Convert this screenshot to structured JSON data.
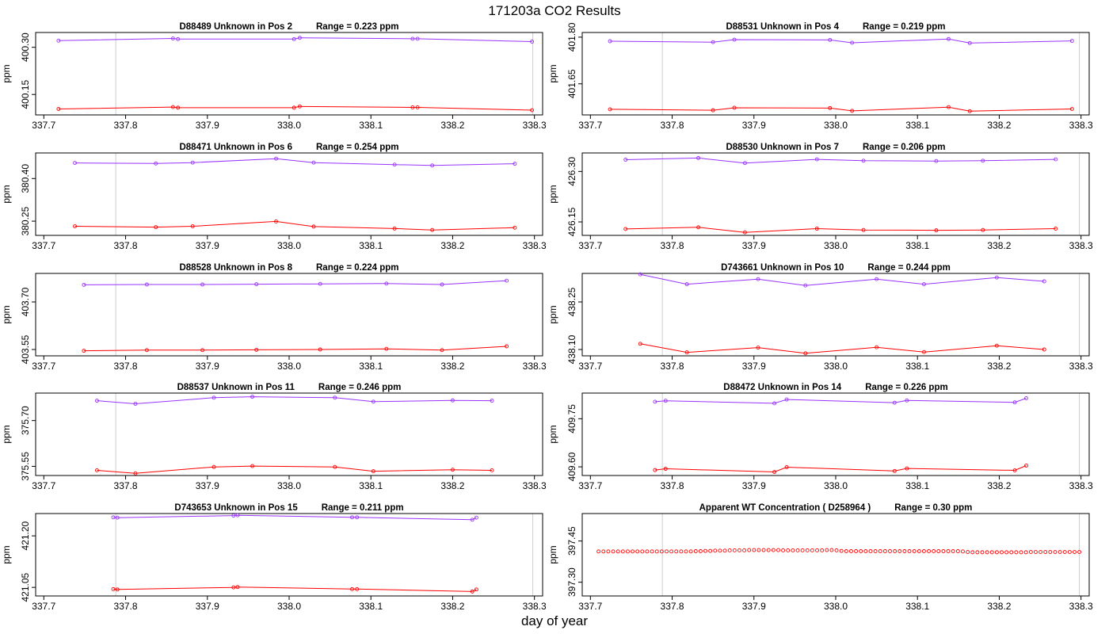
{
  "page": {
    "title": "171203a  CO2 Results",
    "xlabel": "day of year"
  },
  "colors": {
    "upper": "#9933ff",
    "lower": "#ff0000",
    "ref_line": "#cccccc",
    "axis": "#000000"
  },
  "chart_data": [
    {
      "type": "line",
      "id": "D88489",
      "title": "D88489    Unknown in Pos 2",
      "range_text": "Range =  0.223 ppm",
      "ylabel": "ppm",
      "xlim": [
        337.69,
        338.31
      ],
      "xticks": [
        "337.7",
        "337.8",
        "337.9",
        "338.0",
        "338.1",
        "338.2",
        "338.3"
      ],
      "ylim": [
        400.085,
        400.347
      ],
      "yticks": [
        "400.15",
        "400.30"
      ],
      "ref_lines": [
        337.788,
        338.298
      ],
      "series": [
        {
          "name": "upper",
          "x": [
            337.718,
            337.858,
            337.864,
            338.006,
            338.013,
            338.151,
            338.157,
            338.297
          ],
          "y": [
            400.321,
            400.328,
            400.326,
            400.326,
            400.33,
            400.327,
            400.327,
            400.318
          ]
        },
        {
          "name": "lower",
          "x": [
            337.718,
            337.858,
            337.864,
            338.006,
            338.013,
            338.151,
            338.157,
            338.297
          ],
          "y": [
            400.104,
            400.11,
            400.108,
            400.108,
            400.112,
            400.109,
            400.109,
            400.1
          ]
        }
      ]
    },
    {
      "type": "line",
      "id": "D88531",
      "title": "D88531    Unknown in Pos 4",
      "range_text": "Range =  0.219 ppm",
      "ylabel": "ppm",
      "xlim": [
        337.69,
        338.31
      ],
      "xticks": [
        "337.7",
        "337.8",
        "337.9",
        "338.0",
        "338.1",
        "338.2",
        "338.3"
      ],
      "ylim": [
        401.55,
        401.815
      ],
      "yticks": [
        "401.65",
        "401.80"
      ],
      "ref_lines": [
        337.788,
        338.298
      ],
      "series": [
        {
          "name": "upper",
          "x": [
            337.724,
            337.85,
            337.876,
            337.993,
            338.02,
            338.138,
            338.164,
            338.289
          ],
          "y": [
            401.787,
            401.784,
            401.792,
            401.791,
            401.782,
            401.794,
            401.781,
            401.788
          ]
        },
        {
          "name": "lower",
          "x": [
            337.724,
            337.85,
            337.876,
            337.993,
            338.02,
            338.138,
            338.164,
            338.289
          ],
          "y": [
            401.568,
            401.565,
            401.573,
            401.572,
            401.563,
            401.575,
            401.562,
            401.569
          ]
        }
      ]
    },
    {
      "type": "line",
      "id": "D88471",
      "title": "D88471    Unknown in Pos 6",
      "range_text": "Range =  0.254 ppm",
      "ylabel": "ppm",
      "xlim": [
        337.69,
        338.31
      ],
      "xticks": [
        "337.7",
        "337.8",
        "337.9",
        "338.0",
        "338.1",
        "338.2",
        "338.3"
      ],
      "ylim": [
        380.2,
        380.49
      ],
      "yticks": [
        "380.25",
        "380.40"
      ],
      "ref_lines": [
        337.788
      ],
      "series": [
        {
          "name": "upper",
          "x": [
            337.738,
            337.837,
            337.882,
            337.984,
            338.03,
            338.129,
            338.175,
            338.276
          ],
          "y": [
            380.455,
            380.453,
            380.456,
            380.47,
            380.456,
            380.449,
            380.446,
            380.452
          ]
        },
        {
          "name": "lower",
          "x": [
            337.738,
            337.837,
            337.882,
            337.984,
            338.03,
            338.129,
            338.175,
            338.276
          ],
          "y": [
            380.232,
            380.229,
            380.232,
            380.249,
            380.231,
            380.224,
            380.219,
            380.227
          ]
        }
      ]
    },
    {
      "type": "line",
      "id": "D88530",
      "title": "D88530    Unknown in Pos 7",
      "range_text": "Range =  0.206 ppm",
      "ylabel": "ppm",
      "xlim": [
        337.69,
        338.31
      ],
      "xticks": [
        "337.7",
        "337.8",
        "337.9",
        "338.0",
        "338.1",
        "338.2",
        "338.3"
      ],
      "ylim": [
        426.11,
        426.355
      ],
      "yticks": [
        "426.15",
        "426.30"
      ],
      "ref_lines": [
        337.788,
        338.298
      ],
      "series": [
        {
          "name": "upper",
          "x": [
            337.743,
            337.832,
            337.889,
            337.977,
            338.034,
            338.123,
            338.18,
            338.269
          ],
          "y": [
            426.335,
            426.34,
            426.325,
            426.336,
            426.332,
            426.331,
            426.332,
            426.336
          ]
        },
        {
          "name": "lower",
          "x": [
            337.743,
            337.832,
            337.889,
            337.977,
            338.034,
            338.123,
            338.18,
            338.269
          ],
          "y": [
            426.129,
            426.134,
            426.119,
            426.13,
            426.126,
            426.125,
            426.126,
            426.13
          ]
        }
      ]
    },
    {
      "type": "line",
      "id": "D88528",
      "title": "D88528    Unknown in Pos 8",
      "range_text": "Range =  0.224 ppm",
      "ylabel": "ppm",
      "xlim": [
        337.69,
        338.31
      ],
      "xticks": [
        "337.7",
        "337.8",
        "337.9",
        "338.0",
        "338.1",
        "338.2",
        "338.3"
      ],
      "ylim": [
        403.53,
        403.79
      ],
      "yticks": [
        "403.55",
        "403.70"
      ],
      "ref_lines": [
        337.788
      ],
      "series": [
        {
          "name": "upper",
          "x": [
            337.749,
            337.826,
            337.894,
            337.96,
            338.038,
            338.119,
            338.187,
            338.266
          ],
          "y": [
            403.754,
            403.755,
            403.755,
            403.756,
            403.757,
            403.758,
            403.755,
            403.767
          ]
        },
        {
          "name": "lower",
          "x": [
            337.749,
            337.826,
            337.894,
            337.96,
            338.038,
            338.119,
            338.187,
            338.266
          ],
          "y": [
            403.546,
            403.548,
            403.548,
            403.549,
            403.55,
            403.552,
            403.548,
            403.56
          ]
        }
      ]
    },
    {
      "type": "line",
      "id": "D743661",
      "title": "D743661    Unknown in Pos 10",
      "range_text": "Range =  0.244 ppm",
      "ylabel": "ppm",
      "xlim": [
        337.69,
        338.31
      ],
      "xticks": [
        "337.7",
        "337.8",
        "337.9",
        "338.0",
        "338.1",
        "338.2",
        "338.3"
      ],
      "ylim": [
        438.08,
        438.34
      ],
      "yticks": [
        "438.10",
        "438.25"
      ],
      "ref_lines": [
        337.788,
        338.298
      ],
      "series": [
        {
          "name": "upper",
          "x": [
            337.761,
            337.818,
            337.905,
            337.963,
            338.05,
            338.108,
            338.197,
            338.255
          ],
          "y": [
            438.337,
            438.306,
            438.322,
            438.302,
            438.322,
            438.306,
            438.327,
            438.315
          ]
        },
        {
          "name": "lower",
          "x": [
            337.761,
            337.818,
            337.905,
            337.963,
            338.05,
            338.108,
            338.197,
            338.255
          ],
          "y": [
            438.118,
            438.091,
            438.106,
            438.088,
            438.107,
            438.092,
            438.112,
            438.1
          ]
        }
      ]
    },
    {
      "type": "line",
      "id": "D88537",
      "title": "D88537    Unknown in Pos 11",
      "range_text": "Range =  0.246 ppm",
      "ylabel": "ppm",
      "xlim": [
        337.69,
        338.31
      ],
      "xticks": [
        "337.7",
        "337.8",
        "337.9",
        "338.0",
        "338.1",
        "338.2",
        "338.3"
      ],
      "ylim": [
        375.52,
        375.79
      ],
      "yticks": [
        "375.55",
        "375.70"
      ],
      "ref_lines": [
        337.788
      ],
      "series": [
        {
          "name": "upper",
          "x": [
            337.765,
            337.812,
            337.908,
            337.955,
            338.056,
            338.103,
            338.2,
            338.248
          ],
          "y": [
            375.765,
            375.755,
            375.775,
            375.778,
            375.775,
            375.762,
            375.766,
            375.765
          ]
        },
        {
          "name": "lower",
          "x": [
            337.765,
            337.812,
            337.908,
            337.955,
            338.056,
            338.103,
            338.2,
            338.248
          ],
          "y": [
            375.537,
            375.527,
            375.548,
            375.551,
            375.548,
            375.534,
            375.539,
            375.537
          ]
        }
      ]
    },
    {
      "type": "line",
      "id": "D88472",
      "title": "D88472    Unknown in Pos 14",
      "range_text": "Range =  0.226 ppm",
      "ylabel": "ppm",
      "xlim": [
        337.69,
        338.31
      ],
      "xticks": [
        "337.7",
        "337.8",
        "337.9",
        "338.0",
        "338.1",
        "338.2",
        "338.3"
      ],
      "ylim": [
        409.573,
        409.83
      ],
      "yticks": [
        "409.60",
        "409.75"
      ],
      "ref_lines": [
        337.788,
        338.298
      ],
      "series": [
        {
          "name": "upper",
          "x": [
            337.779,
            337.792,
            337.925,
            337.94,
            338.072,
            338.087,
            338.219,
            338.233
          ],
          "y": [
            409.803,
            409.806,
            409.798,
            409.81,
            409.8,
            409.807,
            409.801,
            409.814
          ]
        },
        {
          "name": "lower",
          "x": [
            337.779,
            337.792,
            337.925,
            337.94,
            338.072,
            338.087,
            338.219,
            338.233
          ],
          "y": [
            409.59,
            409.594,
            409.584,
            409.599,
            409.587,
            409.595,
            409.589,
            409.604
          ]
        }
      ]
    },
    {
      "type": "line",
      "id": "D743653",
      "title": "D743653    Unknown in Pos 15",
      "range_text": "Range =  0.211 ppm",
      "ylabel": "ppm",
      "xlim": [
        337.69,
        338.31
      ],
      "xticks": [
        "337.7",
        "337.8",
        "337.9",
        "338.0",
        "338.1",
        "338.2",
        "338.3"
      ],
      "ylim": [
        421.025,
        421.265
      ],
      "yticks": [
        "421.05",
        "421.20"
      ],
      "ref_lines": [
        337.788,
        338.298
      ],
      "series": [
        {
          "name": "upper",
          "x": [
            337.785,
            337.79,
            337.932,
            337.937,
            338.077,
            338.083,
            338.224,
            338.229
          ],
          "y": [
            421.254,
            421.253,
            421.259,
            421.26,
            421.254,
            421.254,
            421.247,
            421.253
          ]
        },
        {
          "name": "lower",
          "x": [
            337.785,
            337.79,
            337.932,
            337.937,
            338.077,
            338.083,
            338.224,
            338.229
          ],
          "y": [
            421.045,
            421.044,
            421.05,
            421.051,
            421.045,
            421.045,
            421.038,
            421.044
          ]
        }
      ]
    },
    {
      "type": "scatter",
      "id": "D258964",
      "title": "Apparent WT Concentration ( D258964 )",
      "range_text": "Range = 0.30 ppm",
      "ylabel": "ppm",
      "xlim": [
        337.69,
        338.31
      ],
      "xticks": [
        "337.7",
        "337.8",
        "337.9",
        "338.0",
        "338.1",
        "338.2",
        "338.3"
      ],
      "ylim": [
        397.25,
        397.55
      ],
      "yticks": [
        "397.30",
        "397.45"
      ],
      "ref_lines": [
        337.788,
        338.298
      ],
      "series": [
        {
          "name": "WT",
          "x_start": 337.71,
          "x_end": 338.298,
          "y": [
            397.412,
            397.412,
            397.412,
            397.412,
            397.412,
            397.412,
            397.412,
            397.412,
            397.412,
            397.412,
            397.412,
            397.412,
            397.412,
            397.412,
            397.412,
            397.412,
            397.412,
            397.412,
            397.412,
            397.412,
            397.413,
            397.413,
            397.414,
            397.414,
            397.415,
            397.415,
            397.415,
            397.416,
            397.416,
            397.416,
            397.416,
            397.417,
            397.417,
            397.417,
            397.417,
            397.417,
            397.417,
            397.417,
            397.416,
            397.416,
            397.416,
            397.416,
            397.416,
            397.416,
            397.416,
            397.416,
            397.416,
            397.417,
            397.417,
            397.416,
            397.414,
            397.413,
            397.413,
            397.413,
            397.413,
            397.413,
            397.413,
            397.413,
            397.413,
            397.413,
            397.413,
            397.413,
            397.413,
            397.413,
            397.413,
            397.413,
            397.413,
            397.413,
            397.413,
            397.413,
            397.413,
            397.413,
            397.413,
            397.413,
            397.413,
            397.412,
            397.41,
            397.409,
            397.409,
            397.409,
            397.409,
            397.409,
            397.409,
            397.409,
            397.409,
            397.409,
            397.409,
            397.409,
            397.409,
            397.41,
            397.41,
            397.41,
            397.41,
            397.41,
            397.41,
            397.41,
            397.41,
            397.41,
            397.41,
            397.41
          ]
        }
      ]
    }
  ]
}
